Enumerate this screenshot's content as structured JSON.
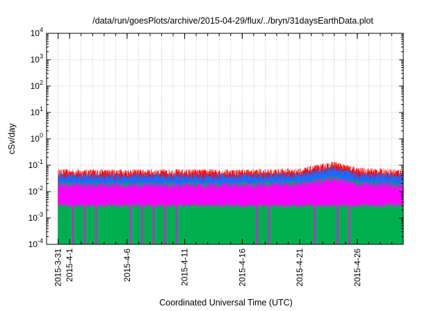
{
  "chart_data": {
    "type": "area",
    "title": "/data/run/goesPlots/archive/2015-04-29/flux/../bryn/31daysEarthData.plot",
    "xlabel": "Coordinated Universal Time (UTC)",
    "ylabel": "cSv/day",
    "yscale": "log",
    "ylim": [
      0.0001,
      10000
    ],
    "y_ticks": [
      {
        "base": "10",
        "exp": "4"
      },
      {
        "base": "10",
        "exp": "3"
      },
      {
        "base": "10",
        "exp": "2"
      },
      {
        "base": "10",
        "exp": "1"
      },
      {
        "base": "10",
        "exp": "0"
      },
      {
        "base": "10",
        "exp": "-1"
      },
      {
        "base": "10",
        "exp": "-2"
      },
      {
        "base": "10",
        "exp": "-3"
      },
      {
        "base": "10",
        "exp": "-4"
      }
    ],
    "xlim": [
      "2015-03-30",
      "2015-04-30"
    ],
    "x_ticks": [
      "2015-3-31",
      "2015-4-1",
      "2015-4-6",
      "2015-4-11",
      "2015-4-16",
      "2015-4-21",
      "2015-4-26"
    ],
    "grid": true,
    "series": [
      {
        "color": "#ff0000",
        "x": [
          "2015-04-01",
          "2015-04-06",
          "2015-04-11",
          "2015-04-16",
          "2015-04-21",
          "2015-04-24",
          "2015-04-26",
          "2015-04-30"
        ],
        "values": [
          0.065,
          0.065,
          0.065,
          0.065,
          0.07,
          0.13,
          0.075,
          0.065
        ]
      },
      {
        "color": "#1a6aff",
        "x": [
          "2015-04-01",
          "2015-04-06",
          "2015-04-11",
          "2015-04-16",
          "2015-04-21",
          "2015-04-24",
          "2015-04-26",
          "2015-04-30"
        ],
        "values": [
          0.045,
          0.045,
          0.045,
          0.045,
          0.05,
          0.09,
          0.05,
          0.045
        ]
      },
      {
        "color": "#00b050",
        "x": [
          "2015-04-01",
          "2015-04-06",
          "2015-04-11",
          "2015-04-16",
          "2015-04-21",
          "2015-04-24",
          "2015-04-26",
          "2015-04-30"
        ],
        "values": [
          0.022,
          0.022,
          0.022,
          0.022,
          0.025,
          0.04,
          0.025,
          0.022
        ]
      },
      {
        "color": "#ff00ff",
        "x": [
          "2015-04-01",
          "2015-04-06",
          "2015-04-11",
          "2015-04-16",
          "2015-04-21",
          "2015-04-24",
          "2015-04-26",
          "2015-04-30"
        ],
        "values": [
          0.02,
          0.02,
          0.02,
          0.02,
          0.022,
          0.035,
          0.022,
          0.02
        ],
        "floor": 0.0035
      }
    ],
    "dropouts": [
      "2015-04-01",
      "2015-04-02",
      "2015-04-03",
      "2015-04-06",
      "2015-04-07",
      "2015-04-08",
      "2015-04-09",
      "2015-04-10",
      "2015-04-17",
      "2015-04-18",
      "2015-04-22",
      "2015-04-24",
      "2015-04-25"
    ]
  }
}
